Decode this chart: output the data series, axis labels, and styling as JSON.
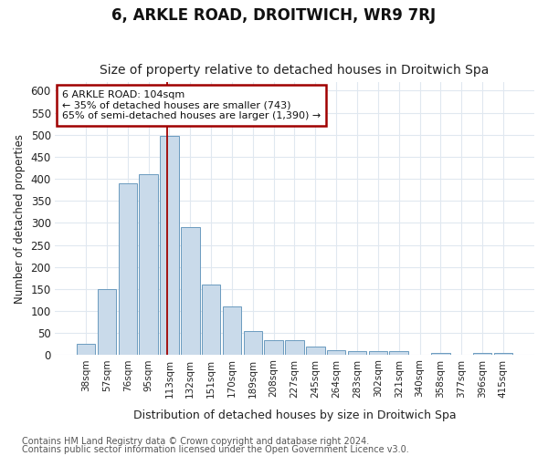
{
  "title": "6, ARKLE ROAD, DROITWICH, WR9 7RJ",
  "subtitle": "Size of property relative to detached houses in Droitwich Spa",
  "xlabel": "Distribution of detached houses by size in Droitwich Spa",
  "ylabel": "Number of detached properties",
  "footnote1": "Contains HM Land Registry data © Crown copyright and database right 2024.",
  "footnote2": "Contains public sector information licensed under the Open Government Licence v3.0.",
  "annotation_line1": "6 ARKLE ROAD: 104sqm",
  "annotation_line2": "← 35% of detached houses are smaller (743)",
  "annotation_line3": "65% of semi-detached houses are larger (1,390) →",
  "bar_labels": [
    "38sqm",
    "57sqm",
    "76sqm",
    "95sqm",
    "113sqm",
    "132sqm",
    "151sqm",
    "170sqm",
    "189sqm",
    "208sqm",
    "227sqm",
    "245sqm",
    "264sqm",
    "283sqm",
    "302sqm",
    "321sqm",
    "340sqm",
    "358sqm",
    "377sqm",
    "396sqm",
    "415sqm"
  ],
  "bar_values": [
    25,
    150,
    390,
    410,
    497,
    290,
    160,
    110,
    55,
    33,
    33,
    19,
    10,
    8,
    8,
    8,
    0,
    4,
    0,
    5,
    5
  ],
  "bar_color": "#c9daea",
  "bar_edge_color": "#6b9bbf",
  "vline_color": "#a00000",
  "ylim": [
    0,
    620
  ],
  "yticks": [
    0,
    50,
    100,
    150,
    200,
    250,
    300,
    350,
    400,
    450,
    500,
    550,
    600
  ],
  "bg_color": "#ffffff",
  "plot_bg_color": "#ffffff",
  "grid_color": "#e0e8f0",
  "annotation_box_color": "#ffffff",
  "annotation_box_edge": "#a00000",
  "title_fontsize": 12,
  "subtitle_fontsize": 10,
  "footnote_fontsize": 7
}
